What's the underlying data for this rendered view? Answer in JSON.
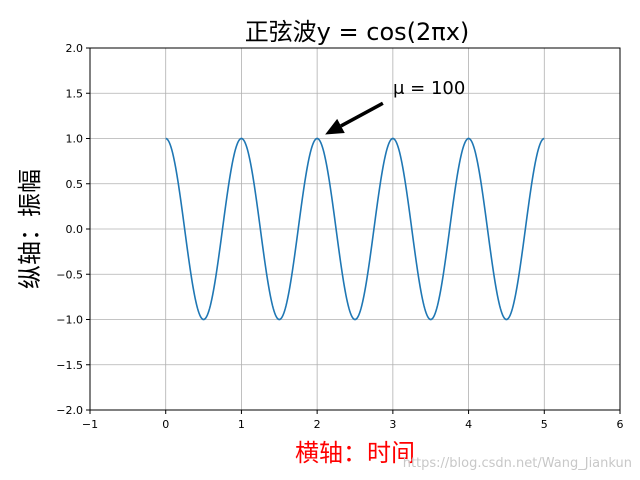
{
  "chart_data": {
    "type": "line",
    "title": "正弦波y = cos(2πx)",
    "xlabel": "横轴：时间",
    "ylabel": "纵轴：振幅",
    "xlim": [
      -1,
      6
    ],
    "ylim": [
      -2.0,
      2.0
    ],
    "xticks": [
      -1,
      0,
      1,
      2,
      3,
      4,
      5,
      6
    ],
    "xtick_labels": [
      "−1",
      "0",
      "1",
      "2",
      "3",
      "4",
      "5",
      "6"
    ],
    "yticks": [
      -2.0,
      -1.5,
      -1.0,
      -0.5,
      0.0,
      0.5,
      1.0,
      1.5,
      2.0
    ],
    "ytick_labels": [
      "−2.0",
      "−1.5",
      "−1.0",
      "−0.5",
      "0.0",
      "0.5",
      "1.0",
      "1.5",
      "2.0"
    ],
    "grid": true,
    "series": [
      {
        "function": "cos(2πx)",
        "x_range": [
          0,
          5
        ],
        "color": "#1f77b4"
      }
    ],
    "annotation": {
      "text": "μ = 100",
      "point": [
        2,
        1.0
      ],
      "text_position": [
        3,
        1.5
      ]
    },
    "colors": {
      "xlabel": "#ff0000",
      "line": "#1f77b4",
      "arrow": "#000000"
    }
  },
  "watermark": "https://blog.csdn.net/Wang_Jiankun"
}
